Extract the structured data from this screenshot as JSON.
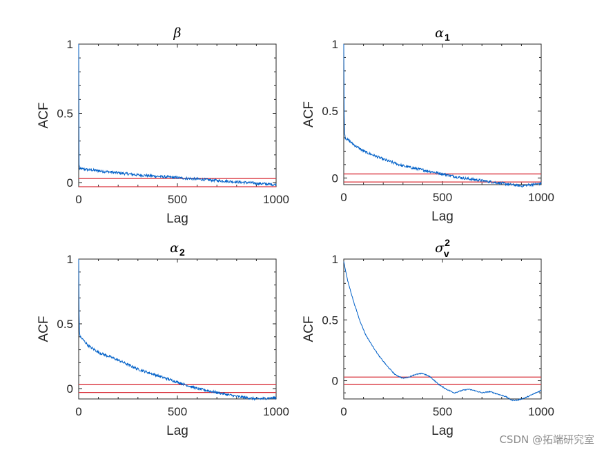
{
  "colors": {
    "series": "#0060c8",
    "bound": "#d9303a",
    "axis": "#262626"
  },
  "watermark": "CSDN @拓端研究室",
  "chart_data": [
    {
      "type": "line",
      "title": "β",
      "title_sub": "",
      "title_sup": "",
      "xlabel": "Lag",
      "ylabel": "ACF",
      "xlim": [
        0,
        1000
      ],
      "ylim": [
        -0.03,
        1
      ],
      "xticks": [
        "0",
        "500",
        "1000"
      ],
      "yticks": [
        "0",
        "0.5",
        "1"
      ],
      "noise": 0.01,
      "series": [
        {
          "name": "ACF",
          "x": [
            0,
            1,
            2,
            5,
            100,
            200,
            300,
            400,
            500,
            600,
            700,
            800,
            900,
            1000
          ],
          "values": [
            1,
            0.25,
            0.13,
            0.1,
            0.085,
            0.07,
            0.055,
            0.045,
            0.035,
            0.025,
            0.015,
            0.005,
            -0.005,
            -0.015
          ]
        }
      ],
      "bounds": [
        0.03,
        -0.03
      ]
    },
    {
      "type": "line",
      "title": "α",
      "title_sub": "1",
      "title_sup": "",
      "xlabel": "Lag",
      "ylabel": "ACF",
      "xlim": [
        0,
        1000
      ],
      "ylim": [
        -0.05,
        1
      ],
      "xticks": [
        "0",
        "500",
        "1000"
      ],
      "yticks": [
        "0",
        "0.5",
        "1"
      ],
      "noise": 0.01,
      "series": [
        {
          "name": "ACF",
          "x": [
            0,
            1,
            3,
            8,
            50,
            100,
            200,
            300,
            400,
            500,
            600,
            700,
            800,
            900,
            1000
          ],
          "values": [
            1,
            0.6,
            0.35,
            0.3,
            0.25,
            0.2,
            0.14,
            0.09,
            0.06,
            0.03,
            0.0,
            -0.02,
            -0.04,
            -0.06,
            -0.04
          ]
        }
      ],
      "bounds": [
        0.03,
        -0.03
      ]
    },
    {
      "type": "line",
      "title": "α",
      "title_sub": "2",
      "title_sup": "",
      "xlabel": "Lag",
      "ylabel": "ACF",
      "xlim": [
        0,
        1000
      ],
      "ylim": [
        -0.08,
        1
      ],
      "xticks": [
        "0",
        "500",
        "1000"
      ],
      "yticks": [
        "0",
        "0.5",
        "1"
      ],
      "noise": 0.01,
      "series": [
        {
          "name": "ACF",
          "x": [
            0,
            1,
            3,
            8,
            50,
            100,
            200,
            300,
            400,
            500,
            600,
            700,
            800,
            900,
            1000
          ],
          "values": [
            1,
            0.7,
            0.45,
            0.4,
            0.33,
            0.28,
            0.22,
            0.15,
            0.1,
            0.05,
            0.0,
            -0.03,
            -0.06,
            -0.08,
            -0.07
          ]
        }
      ],
      "bounds": [
        0.03,
        -0.03
      ]
    },
    {
      "type": "line",
      "title": "σ",
      "title_sub": "v",
      "title_sup": "2",
      "xlabel": "Lag",
      "ylabel": "ACF",
      "xlim": [
        0,
        1000
      ],
      "ylim": [
        -0.15,
        1
      ],
      "xticks": [
        "0",
        "500",
        "1000"
      ],
      "yticks": [
        "0",
        "0.5",
        "1"
      ],
      "noise": 0.004,
      "series": [
        {
          "name": "ACF",
          "x": [
            0,
            20,
            50,
            80,
            110,
            140,
            180,
            220,
            260,
            300,
            330,
            360,
            400,
            440,
            480,
            520,
            560,
            600,
            630,
            660,
            700,
            740,
            780,
            820,
            850,
            880,
            920,
            960,
            1000
          ],
          "values": [
            0.98,
            0.82,
            0.65,
            0.5,
            0.38,
            0.3,
            0.2,
            0.12,
            0.05,
            0.02,
            0.03,
            0.05,
            0.06,
            0.03,
            -0.03,
            -0.07,
            -0.1,
            -0.08,
            -0.07,
            -0.08,
            -0.1,
            -0.09,
            -0.11,
            -0.13,
            -0.16,
            -0.16,
            -0.14,
            -0.11,
            -0.08
          ]
        }
      ],
      "bounds": [
        0.03,
        -0.03
      ]
    }
  ]
}
